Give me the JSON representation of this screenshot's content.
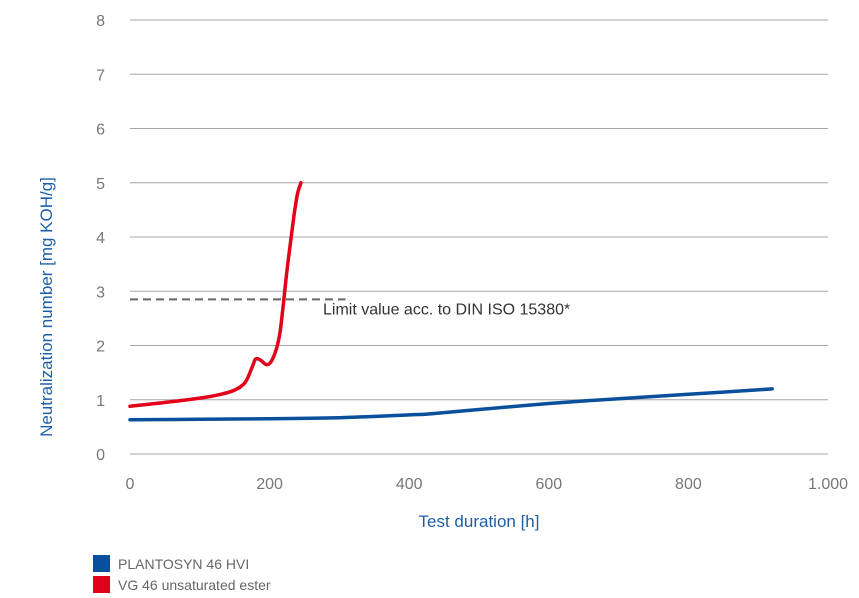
{
  "chart_data": {
    "type": "line",
    "xlabel": "Test duration [h]",
    "ylabel": "Neutralization number [mg KOH/g]",
    "xlim": [
      0,
      1000
    ],
    "ylim": [
      0,
      8
    ],
    "x_ticks": [
      0,
      200,
      400,
      600,
      800,
      1000
    ],
    "x_tick_labels": [
      "0",
      "200",
      "400",
      "600",
      "800",
      "1.000"
    ],
    "y_ticks": [
      0,
      1,
      2,
      3,
      4,
      5,
      6,
      7,
      8
    ],
    "y_tick_labels": [
      "0",
      "1",
      "2",
      "3",
      "4",
      "5",
      "6",
      "7",
      "8"
    ],
    "grid": "horizontal",
    "legend_position": "bottom-left",
    "series": [
      {
        "name": "PLANTOSYN 46 HVI",
        "color": "#0a4f9c",
        "x": [
          0,
          100,
          200,
          300,
          400,
          430,
          500,
          600,
          700,
          800,
          920
        ],
        "y": [
          0.63,
          0.64,
          0.65,
          0.67,
          0.72,
          0.74,
          0.82,
          0.93,
          1.02,
          1.1,
          1.2
        ]
      },
      {
        "name": "VG 46 unsaturated ester",
        "color": "#e2001a",
        "x": [
          0,
          50,
          100,
          130,
          150,
          165,
          175,
          180,
          187,
          195,
          202,
          210,
          215,
          220,
          225,
          230,
          235,
          240,
          245
        ],
        "y": [
          0.88,
          0.95,
          1.03,
          1.1,
          1.18,
          1.32,
          1.6,
          1.75,
          1.73,
          1.65,
          1.7,
          1.95,
          2.25,
          2.8,
          3.4,
          3.9,
          4.4,
          4.8,
          5.0
        ]
      }
    ],
    "limit_line": {
      "value": 2.85,
      "x_range": [
        0,
        240
      ],
      "label": "Limit value acc. to DIN ISO 15380*",
      "color": "#666666"
    }
  }
}
